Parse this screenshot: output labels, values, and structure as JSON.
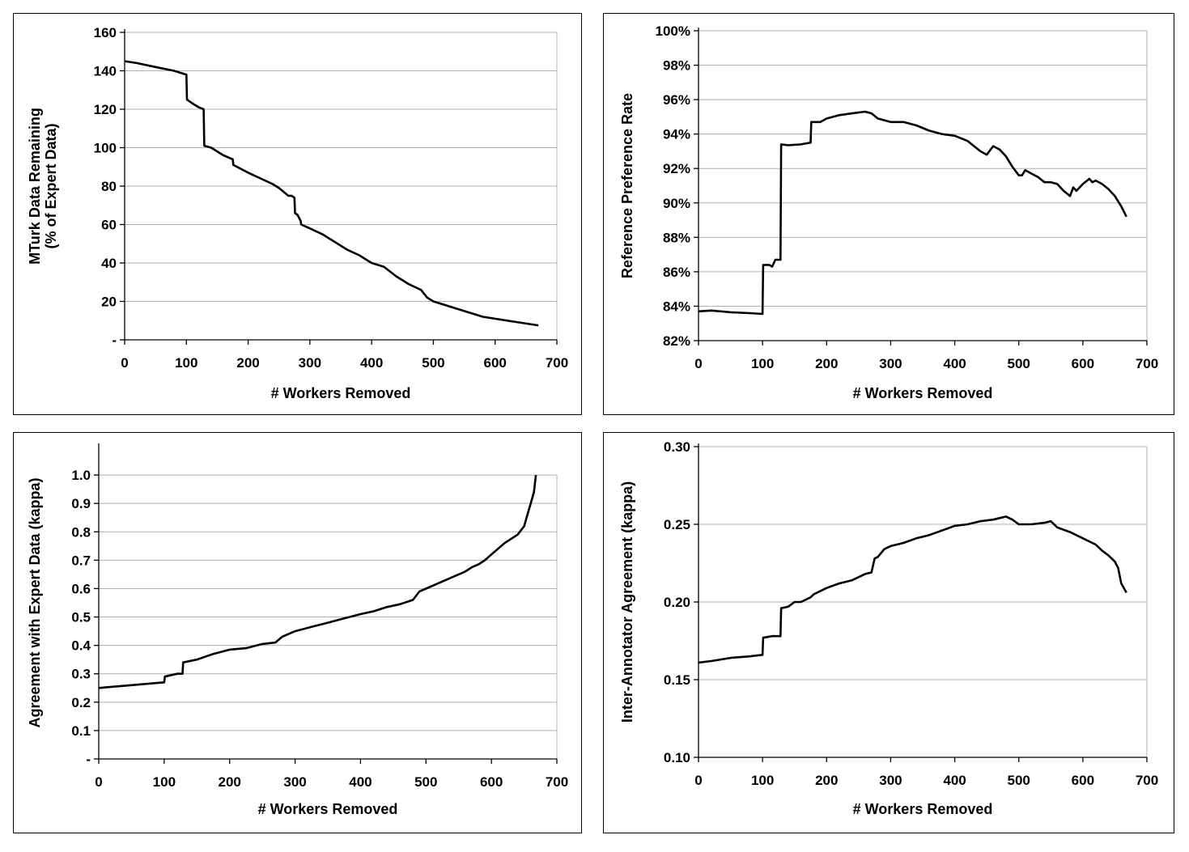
{
  "chart_data": [
    {
      "type": "line",
      "xlabel": "# Workers Removed",
      "ylabel": [
        "MTurk Data Remaining",
        "(% of Expert Data)"
      ],
      "xlim": [
        0,
        700
      ],
      "ylim": [
        0,
        160
      ],
      "x_ticks": [
        0,
        100,
        200,
        300,
        400,
        500,
        600,
        700
      ],
      "x_tick_labels": [
        "0",
        "100",
        "200",
        "300",
        "400",
        "500",
        "600",
        "700"
      ],
      "y_ticks": [
        0,
        20,
        40,
        60,
        80,
        100,
        120,
        140,
        160
      ],
      "y_tick_labels": [
        "-",
        "20",
        "40",
        "60",
        "80",
        "100",
        "120",
        "140",
        "160"
      ],
      "grid": "horizontal",
      "series": [
        {
          "x": [
            0,
            20,
            50,
            80,
            100,
            101,
            110,
            120,
            128,
            129,
            140,
            160,
            175,
            176,
            200,
            220,
            240,
            250,
            265,
            270,
            275,
            276,
            280,
            285,
            286,
            300,
            320,
            340,
            360,
            380,
            400,
            420,
            440,
            460,
            480,
            490,
            500,
            520,
            540,
            560,
            580,
            600,
            620,
            640,
            660,
            670
          ],
          "y": [
            145,
            144,
            142,
            140,
            138,
            125,
            123,
            121,
            120,
            101,
            100,
            96,
            94,
            91,
            87,
            84,
            81,
            79,
            75,
            75,
            74,
            66,
            65,
            62,
            60,
            58,
            55,
            51,
            47,
            44,
            40,
            38,
            33,
            29,
            26,
            22,
            20,
            18,
            16,
            14,
            12,
            11,
            10,
            9,
            8,
            7.5
          ]
        }
      ]
    },
    {
      "type": "line",
      "xlabel": "# Workers Removed",
      "ylabel": "Reference Preference Rate",
      "xlim": [
        0,
        700
      ],
      "ylim": [
        82,
        100
      ],
      "x_ticks": [
        0,
        100,
        200,
        300,
        400,
        500,
        600,
        700
      ],
      "x_tick_labels": [
        "0",
        "100",
        "200",
        "300",
        "400",
        "500",
        "600",
        "700"
      ],
      "y_ticks": [
        82,
        84,
        86,
        88,
        90,
        92,
        94,
        96,
        98,
        100
      ],
      "y_tick_labels": [
        "82%",
        "84%",
        "86%",
        "88%",
        "90%",
        "92%",
        "94%",
        "96%",
        "98%",
        "100%"
      ],
      "grid": "horizontal",
      "series": [
        {
          "x": [
            0,
            20,
            50,
            80,
            100,
            101,
            110,
            115,
            120,
            128,
            129,
            140,
            160,
            175,
            176,
            190,
            200,
            220,
            240,
            260,
            270,
            280,
            300,
            320,
            340,
            360,
            380,
            400,
            420,
            440,
            450,
            460,
            470,
            480,
            490,
            500,
            505,
            510,
            520,
            530,
            540,
            550,
            560,
            570,
            580,
            585,
            590,
            600,
            610,
            615,
            620,
            630,
            640,
            650,
            660,
            668
          ],
          "y": [
            83.7,
            83.75,
            83.65,
            83.6,
            83.55,
            86.4,
            86.4,
            86.3,
            86.7,
            86.7,
            93.4,
            93.35,
            93.4,
            93.5,
            94.7,
            94.7,
            94.9,
            95.1,
            95.2,
            95.3,
            95.2,
            94.9,
            94.7,
            94.7,
            94.5,
            94.2,
            94.0,
            93.9,
            93.6,
            93.0,
            92.8,
            93.3,
            93.1,
            92.7,
            92.1,
            91.6,
            91.6,
            91.9,
            91.7,
            91.5,
            91.2,
            91.2,
            91.1,
            90.7,
            90.4,
            90.9,
            90.7,
            91.1,
            91.4,
            91.2,
            91.3,
            91.1,
            90.8,
            90.4,
            89.8,
            89.2
          ]
        }
      ]
    },
    {
      "type": "line",
      "xlabel": "# Workers Removed",
      "ylabel": "Agreement with Expert Data (kappa)",
      "xlim": [
        0,
        700
      ],
      "ylim": [
        0,
        1.1
      ],
      "x_ticks": [
        0,
        100,
        200,
        300,
        400,
        500,
        600,
        700
      ],
      "x_tick_labels": [
        "0",
        "100",
        "200",
        "300",
        "400",
        "500",
        "600",
        "700"
      ],
      "y_ticks": [
        0,
        0.1,
        0.2,
        0.3,
        0.4,
        0.5,
        0.6,
        0.7,
        0.8,
        0.9,
        1.0
      ],
      "y_tick_labels": [
        "-",
        "0.1",
        "0.2",
        "0.3",
        "0.4",
        "0.5",
        "0.6",
        "0.7",
        "0.8",
        "0.9",
        "1.0"
      ],
      "grid": "horizontal",
      "series": [
        {
          "x": [
            0,
            50,
            100,
            101,
            120,
            128,
            129,
            150,
            175,
            200,
            225,
            250,
            270,
            280,
            300,
            325,
            350,
            375,
            400,
            420,
            440,
            460,
            480,
            490,
            500,
            520,
            540,
            560,
            570,
            580,
            590,
            600,
            620,
            640,
            650,
            655,
            660,
            665,
            668
          ],
          "y": [
            0.25,
            0.26,
            0.27,
            0.29,
            0.3,
            0.3,
            0.34,
            0.35,
            0.37,
            0.385,
            0.39,
            0.405,
            0.41,
            0.43,
            0.45,
            0.465,
            0.48,
            0.495,
            0.51,
            0.52,
            0.535,
            0.545,
            0.56,
            0.59,
            0.6,
            0.62,
            0.64,
            0.66,
            0.675,
            0.685,
            0.7,
            0.72,
            0.76,
            0.79,
            0.82,
            0.86,
            0.9,
            0.94,
            1.0
          ]
        }
      ]
    },
    {
      "type": "line",
      "xlabel": "# Workers Removed",
      "ylabel": "Inter-Annotator Agreement (kappa)",
      "xlim": [
        0,
        700
      ],
      "ylim": [
        0.1,
        0.3
      ],
      "x_ticks": [
        0,
        100,
        200,
        300,
        400,
        500,
        600,
        700
      ],
      "x_tick_labels": [
        "0",
        "100",
        "200",
        "300",
        "400",
        "500",
        "600",
        "700"
      ],
      "y_ticks": [
        0.1,
        0.15,
        0.2,
        0.25,
        0.3
      ],
      "y_tick_labels": [
        "0.10",
        "0.15",
        "0.20",
        "0.25",
        "0.30"
      ],
      "grid": "horizontal",
      "series": [
        {
          "x": [
            0,
            20,
            50,
            80,
            100,
            101,
            115,
            128,
            129,
            140,
            150,
            160,
            175,
            180,
            200,
            220,
            240,
            260,
            270,
            275,
            280,
            290,
            300,
            320,
            340,
            360,
            380,
            400,
            420,
            440,
            460,
            470,
            480,
            490,
            500,
            520,
            540,
            550,
            560,
            580,
            600,
            620,
            630,
            640,
            650,
            655,
            660,
            668
          ],
          "y": [
            0.161,
            0.162,
            0.164,
            0.165,
            0.166,
            0.177,
            0.178,
            0.178,
            0.196,
            0.197,
            0.2,
            0.2,
            0.203,
            0.205,
            0.209,
            0.212,
            0.214,
            0.218,
            0.219,
            0.228,
            0.229,
            0.234,
            0.236,
            0.238,
            0.241,
            0.243,
            0.246,
            0.249,
            0.25,
            0.252,
            0.253,
            0.254,
            0.255,
            0.253,
            0.25,
            0.25,
            0.251,
            0.252,
            0.248,
            0.245,
            0.241,
            0.237,
            0.233,
            0.23,
            0.226,
            0.222,
            0.212,
            0.206
          ]
        }
      ]
    }
  ]
}
